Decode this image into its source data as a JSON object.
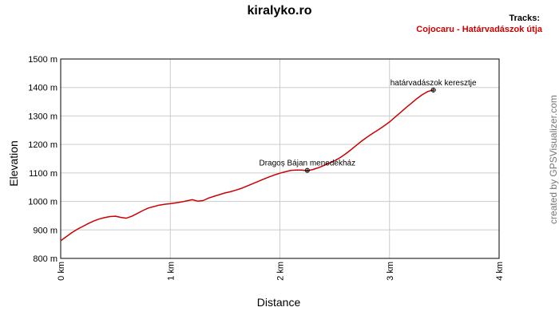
{
  "page": {
    "title": "kiralyko.ro",
    "tracks_header": "Tracks:",
    "credit": "created by GPSVisualizer.com"
  },
  "chart_data": {
    "type": "line",
    "title": "kiralyko.ro",
    "xlabel": "Distance",
    "ylabel": "Elevation",
    "xlim": [
      0,
      4
    ],
    "ylim": [
      800,
      1500
    ],
    "x_unit": "km",
    "y_unit": "m",
    "x_ticks": [
      {
        "value": 0,
        "label": "0 km"
      },
      {
        "value": 1,
        "label": "1 km"
      },
      {
        "value": 2,
        "label": "2 km"
      },
      {
        "value": 3,
        "label": "3 km"
      },
      {
        "value": 4,
        "label": "4 km"
      }
    ],
    "y_ticks": [
      {
        "value": 800,
        "label": "800 m"
      },
      {
        "value": 900,
        "label": "900 m"
      },
      {
        "value": 1000,
        "label": "1000 m"
      },
      {
        "value": 1100,
        "label": "1100 m"
      },
      {
        "value": 1200,
        "label": "1200 m"
      },
      {
        "value": 1300,
        "label": "1300 m"
      },
      {
        "value": 1400,
        "label": "1400 m"
      },
      {
        "value": 1500,
        "label": "1500 m"
      }
    ],
    "grid": true,
    "legend_position": "top-right",
    "series": [
      {
        "name": "Cojocaru - Határvadászok útja",
        "color": "#cc0000",
        "x": [
          0.0,
          0.05,
          0.1,
          0.15,
          0.2,
          0.25,
          0.3,
          0.35,
          0.4,
          0.45,
          0.5,
          0.55,
          0.6,
          0.65,
          0.7,
          0.75,
          0.8,
          0.85,
          0.9,
          0.95,
          1.0,
          1.05,
          1.1,
          1.15,
          1.2,
          1.25,
          1.3,
          1.35,
          1.4,
          1.45,
          1.5,
          1.55,
          1.6,
          1.65,
          1.7,
          1.75,
          1.8,
          1.85,
          1.9,
          1.95,
          2.0,
          2.05,
          2.1,
          2.15,
          2.2,
          2.25,
          2.3,
          2.35,
          2.4,
          2.45,
          2.5,
          2.55,
          2.6,
          2.65,
          2.7,
          2.75,
          2.8,
          2.85,
          2.9,
          2.95,
          3.0,
          3.05,
          3.1,
          3.15,
          3.2,
          3.25,
          3.3,
          3.35,
          3.4
        ],
        "y": [
          862,
          876,
          890,
          902,
          912,
          922,
          931,
          938,
          943,
          947,
          948,
          944,
          941,
          948,
          958,
          968,
          977,
          982,
          987,
          990,
          992,
          995,
          998,
          1002,
          1006,
          1001,
          1003,
          1012,
          1018,
          1024,
          1030,
          1034,
          1040,
          1046,
          1054,
          1062,
          1070,
          1078,
          1086,
          1093,
          1099,
          1104,
          1109,
          1110,
          1110,
          1108,
          1112,
          1118,
          1126,
          1134,
          1143,
          1154,
          1167,
          1182,
          1198,
          1213,
          1227,
          1240,
          1252,
          1265,
          1279,
          1296,
          1312,
          1329,
          1345,
          1361,
          1375,
          1386,
          1391
        ]
      }
    ],
    "annotations": [
      {
        "label": "Dragoș Bájan menedékház",
        "x": 2.25,
        "y": 1109
      },
      {
        "label": "határvadászok keresztje",
        "x": 3.4,
        "y": 1391
      }
    ]
  }
}
